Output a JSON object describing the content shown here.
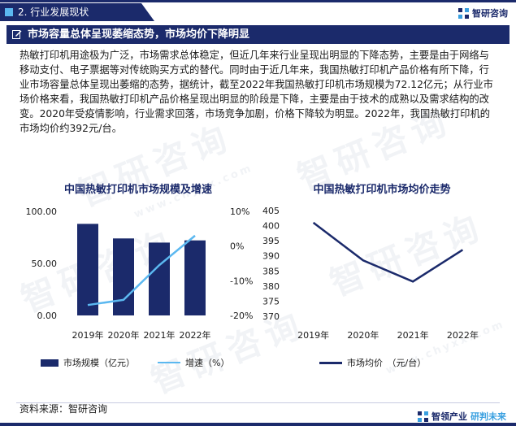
{
  "header": {
    "section_title": "2. 行业发展现状",
    "logo_name": "智研咨询",
    "banner_title": "市场容量总体呈现萎缩态势，市场均价下降明显"
  },
  "body": {
    "paragraph": "热敏打印机用途极为广泛，市场需求总体稳定，但近几年来行业呈现出明显的下降态势，主要是由于网络与移动支付、电子票据等对传统购买方式的替代。同时由于近几年来，我国热敏打印机产品价格有所下降，行业市场容量总体呈现出萎缩的态势，据统计，截至2022年我国热敏打印机市场规模为72.12亿元；从行业市场价格来看，我国热敏打印机产品价格呈现出明显的阶段是下降，主要是由于技术的成熟以及需求结构的改变。2020年受疫情影响，行业需求回落，市场竞争加剧，价格下降较为明显。2022年，我国热敏打印机的市场均价约392元/台。"
  },
  "watermark": {
    "text": "智研咨询",
    "url": "www.chyxx.com"
  },
  "chart_data": [
    {
      "type": "bar",
      "title": "中国热敏打印机市场规模及增速",
      "categories": [
        "2019年",
        "2020年",
        "2021年",
        "2022年"
      ],
      "series": [
        {
          "name": "市场规模（亿元）",
          "type": "bar",
          "axis": "left",
          "values": [
            88,
            74,
            70,
            72.12
          ]
        },
        {
          "name": "增速（%）",
          "type": "line",
          "axis": "right",
          "values": [
            -17,
            -15.5,
            -5.5,
            3
          ]
        }
      ],
      "y_left": {
        "min": 0,
        "max": 100,
        "ticks": [
          "0.00",
          "50.00",
          "100.00"
        ]
      },
      "y_right": {
        "min": -20,
        "max": 10,
        "ticks": [
          "10%",
          "0%",
          "-10%",
          "-20%"
        ]
      },
      "grid": false,
      "legend_position": "bottom",
      "colors": {
        "bar": "#1b2a6b",
        "line": "#5bb8f0"
      }
    },
    {
      "type": "line",
      "title": "中国热敏打印机市场均价走势",
      "categories": [
        "2019年",
        "2020年",
        "2021年",
        "2022年"
      ],
      "series": [
        {
          "name": "市场均价　（元/台）",
          "values": [
            401,
            388.5,
            381.5,
            392
          ]
        }
      ],
      "y": {
        "min": 370,
        "max": 405,
        "ticks": [
          "405",
          "400",
          "395",
          "390",
          "385",
          "380",
          "375",
          "370"
        ]
      },
      "grid": false,
      "legend_position": "bottom",
      "colors": {
        "line": "#1b2a6b"
      }
    }
  ],
  "footer": {
    "source": "资料来源：智研咨询",
    "logo_part1": "智领产业",
    "logo_part2": "研判未来"
  }
}
